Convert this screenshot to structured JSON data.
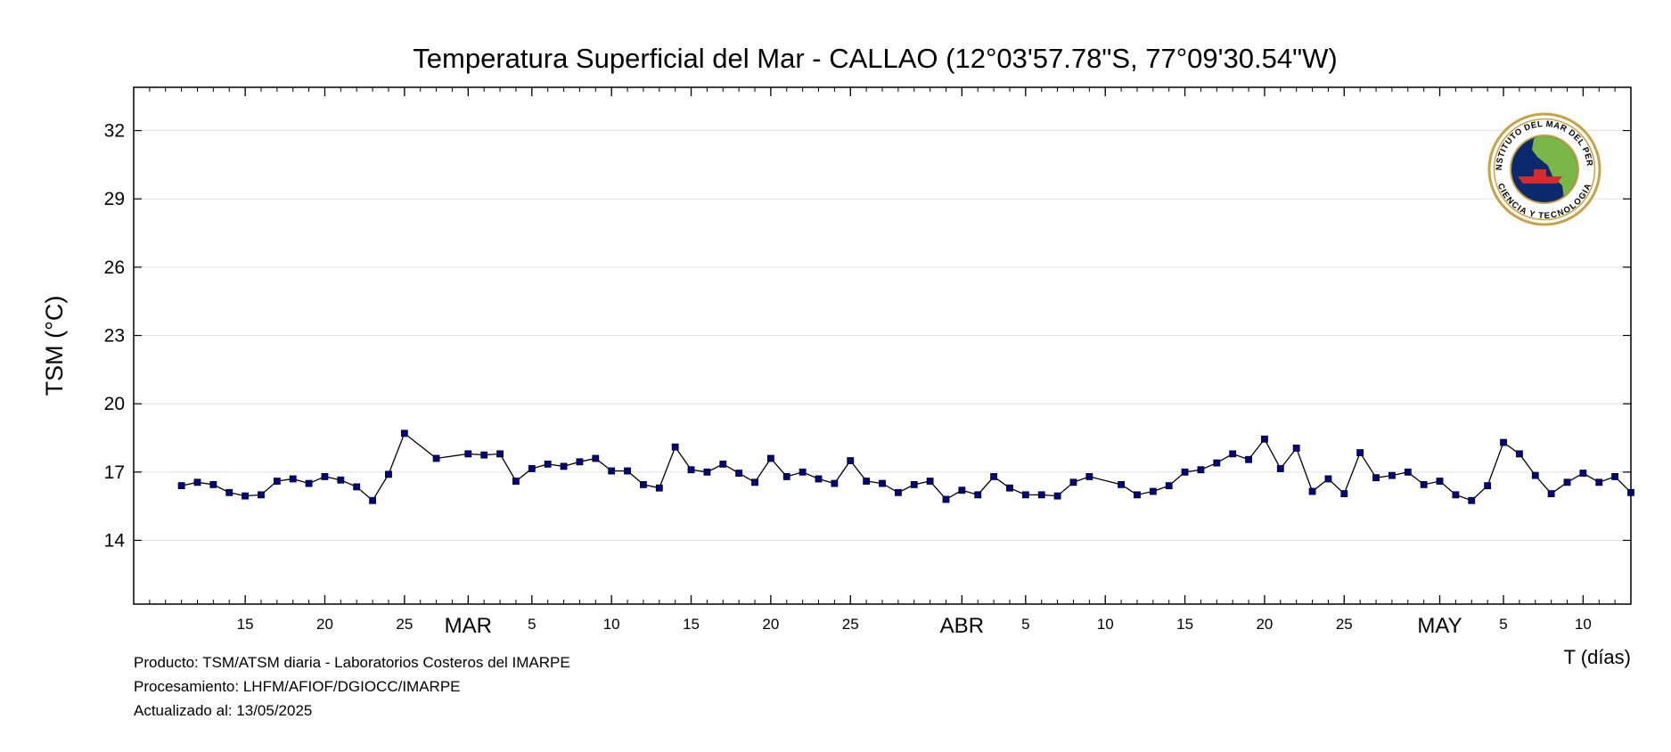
{
  "chart_data": {
    "type": "line",
    "title": "Temperatura Superficial del Mar - CALLAO (12°03'57.78\"S, 77°09'30.54\"W)",
    "ylabel": "TSM (°C)",
    "xlabel": "T (días)",
    "ylim": [
      11.2,
      33.9
    ],
    "yticks": [
      14,
      17,
      20,
      23,
      26,
      29,
      32
    ],
    "xlim": [
      "2025-02-08",
      "2025-05-13"
    ],
    "x_tick_labels": [
      {
        "date": "2025-02-15",
        "label": "15"
      },
      {
        "date": "2025-02-20",
        "label": "20"
      },
      {
        "date": "2025-02-25",
        "label": "25"
      },
      {
        "date": "2025-03-01",
        "label": "MAR"
      },
      {
        "date": "2025-03-05",
        "label": "5"
      },
      {
        "date": "2025-03-10",
        "label": "10"
      },
      {
        "date": "2025-03-15",
        "label": "15"
      },
      {
        "date": "2025-03-20",
        "label": "20"
      },
      {
        "date": "2025-03-25",
        "label": "25"
      },
      {
        "date": "2025-04-01",
        "label": "ABR"
      },
      {
        "date": "2025-04-05",
        "label": "5"
      },
      {
        "date": "2025-04-10",
        "label": "10"
      },
      {
        "date": "2025-04-15",
        "label": "15"
      },
      {
        "date": "2025-04-20",
        "label": "20"
      },
      {
        "date": "2025-04-25",
        "label": "25"
      },
      {
        "date": "2025-05-01",
        "label": "MAY"
      },
      {
        "date": "2025-05-05",
        "label": "5"
      },
      {
        "date": "2025-05-10",
        "label": "10"
      }
    ],
    "grid": true,
    "series": [
      {
        "color": "#00008b",
        "points": [
          [
            "2025-02-11",
            16.4
          ],
          [
            "2025-02-12",
            16.55
          ],
          [
            "2025-02-13",
            16.45
          ],
          [
            "2025-02-14",
            16.1
          ],
          [
            "2025-02-15",
            15.95
          ],
          [
            "2025-02-16",
            16.0
          ],
          [
            "2025-02-17",
            16.6
          ],
          [
            "2025-02-18",
            16.7
          ],
          [
            "2025-02-19",
            16.5
          ],
          [
            "2025-02-20",
            16.8
          ],
          [
            "2025-02-21",
            16.65
          ],
          [
            "2025-02-22",
            16.35
          ],
          [
            "2025-02-23",
            15.75
          ],
          [
            "2025-02-24",
            16.9
          ],
          [
            "2025-02-25",
            18.7
          ],
          [
            "2025-02-27",
            17.6
          ],
          [
            "2025-03-01",
            17.8
          ],
          [
            "2025-03-02",
            17.75
          ],
          [
            "2025-03-03",
            17.8
          ],
          [
            "2025-03-04",
            16.6
          ],
          [
            "2025-03-05",
            17.15
          ],
          [
            "2025-03-06",
            17.35
          ],
          [
            "2025-03-07",
            17.25
          ],
          [
            "2025-03-08",
            17.45
          ],
          [
            "2025-03-09",
            17.6
          ],
          [
            "2025-03-10",
            17.05
          ],
          [
            "2025-03-11",
            17.05
          ],
          [
            "2025-03-12",
            16.45
          ],
          [
            "2025-03-13",
            16.3
          ],
          [
            "2025-03-14",
            18.1
          ],
          [
            "2025-03-15",
            17.1
          ],
          [
            "2025-03-16",
            17.0
          ],
          [
            "2025-03-17",
            17.35
          ],
          [
            "2025-03-18",
            16.95
          ],
          [
            "2025-03-19",
            16.55
          ],
          [
            "2025-03-20",
            17.6
          ],
          [
            "2025-03-21",
            16.8
          ],
          [
            "2025-03-22",
            17.0
          ],
          [
            "2025-03-23",
            16.7
          ],
          [
            "2025-03-24",
            16.5
          ],
          [
            "2025-03-25",
            17.5
          ],
          [
            "2025-03-26",
            16.6
          ],
          [
            "2025-03-27",
            16.5
          ],
          [
            "2025-03-28",
            16.1
          ],
          [
            "2025-03-29",
            16.45
          ],
          [
            "2025-03-30",
            16.6
          ],
          [
            "2025-03-31",
            15.8
          ],
          [
            "2025-04-01",
            16.2
          ],
          [
            "2025-04-02",
            16.0
          ],
          [
            "2025-04-03",
            16.8
          ],
          [
            "2025-04-04",
            16.3
          ],
          [
            "2025-04-05",
            16.0
          ],
          [
            "2025-04-06",
            16.0
          ],
          [
            "2025-04-07",
            15.95
          ],
          [
            "2025-04-08",
            16.55
          ],
          [
            "2025-04-09",
            16.8
          ],
          [
            "2025-04-11",
            16.45
          ],
          [
            "2025-04-12",
            16.0
          ],
          [
            "2025-04-13",
            16.15
          ],
          [
            "2025-04-14",
            16.4
          ],
          [
            "2025-04-15",
            17.0
          ],
          [
            "2025-04-16",
            17.1
          ],
          [
            "2025-04-17",
            17.4
          ],
          [
            "2025-04-18",
            17.8
          ],
          [
            "2025-04-19",
            17.55
          ],
          [
            "2025-04-20",
            18.45
          ],
          [
            "2025-04-21",
            17.15
          ],
          [
            "2025-04-22",
            18.05
          ],
          [
            "2025-04-23",
            16.15
          ],
          [
            "2025-04-24",
            16.7
          ],
          [
            "2025-04-25",
            16.05
          ],
          [
            "2025-04-26",
            17.85
          ],
          [
            "2025-04-27",
            16.75
          ],
          [
            "2025-04-28",
            16.85
          ],
          [
            "2025-04-29",
            17.0
          ],
          [
            "2025-04-30",
            16.45
          ],
          [
            "2025-05-01",
            16.6
          ],
          [
            "2025-05-02",
            16.0
          ],
          [
            "2025-05-03",
            15.75
          ],
          [
            "2025-05-04",
            16.4
          ],
          [
            "2025-05-05",
            18.3
          ],
          [
            "2025-05-06",
            17.8
          ],
          [
            "2025-05-07",
            16.85
          ],
          [
            "2025-05-08",
            16.05
          ],
          [
            "2025-05-09",
            16.55
          ],
          [
            "2025-05-10",
            16.95
          ],
          [
            "2025-05-11",
            16.55
          ],
          [
            "2025-05-12",
            16.8
          ],
          [
            "2025-05-13",
            16.1
          ]
        ]
      }
    ]
  },
  "logo": {
    "text_top": "INSTITUTO DEL MAR DEL PERU",
    "text_bottom": "CIENCIA Y TECNOLOGIA",
    "colors": {
      "ring": "#c9a042",
      "ocean": "#0b2a6e",
      "land": "#7ab648",
      "ship": "#d62b2b"
    }
  },
  "footer": {
    "line1": "Producto: TSM/ATSM diaria - Laboratorios Costeros del IMARPE",
    "line2": "Procesamiento: LHFM/AFIOF/DGIOCC/IMARPE",
    "line3": "Actualizado al: 13/05/2025"
  }
}
